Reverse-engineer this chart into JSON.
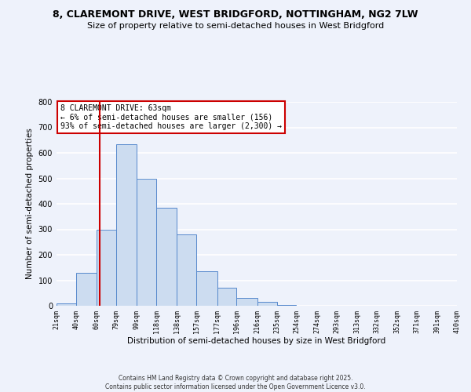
{
  "title_line1": "8, CLAREMONT DRIVE, WEST BRIDGFORD, NOTTINGHAM, NG2 7LW",
  "title_line2": "Size of property relative to semi-detached houses in West Bridgford",
  "xlabel": "Distribution of semi-detached houses by size in West Bridgford",
  "ylabel": "Number of semi-detached properties",
  "bin_edges": [
    21,
    40,
    60,
    79,
    99,
    118,
    138,
    157,
    177,
    196,
    216,
    235,
    254,
    274,
    293,
    313,
    332,
    352,
    371,
    391,
    410
  ],
  "bar_heights": [
    10,
    130,
    300,
    635,
    500,
    385,
    280,
    135,
    70,
    30,
    15,
    3,
    0,
    0,
    0,
    0,
    0,
    0,
    0,
    0
  ],
  "bar_color": "#ccdcf0",
  "bar_edge_color": "#5588cc",
  "vline_x": 63,
  "vline_color": "#cc0000",
  "annotation_title": "8 CLAREMONT DRIVE: 63sqm",
  "annotation_line1": "← 6% of semi-detached houses are smaller (156)",
  "annotation_line2": "93% of semi-detached houses are larger (2,300) →",
  "annotation_box_color": "#ffffff",
  "annotation_box_edge": "#cc0000",
  "ylim": [
    0,
    800
  ],
  "yticks": [
    0,
    100,
    200,
    300,
    400,
    500,
    600,
    700,
    800
  ],
  "footer_line1": "Contains HM Land Registry data © Crown copyright and database right 2025.",
  "footer_line2": "Contains public sector information licensed under the Open Government Licence v3.0.",
  "bg_color": "#eef2fb",
  "grid_color": "#ffffff"
}
